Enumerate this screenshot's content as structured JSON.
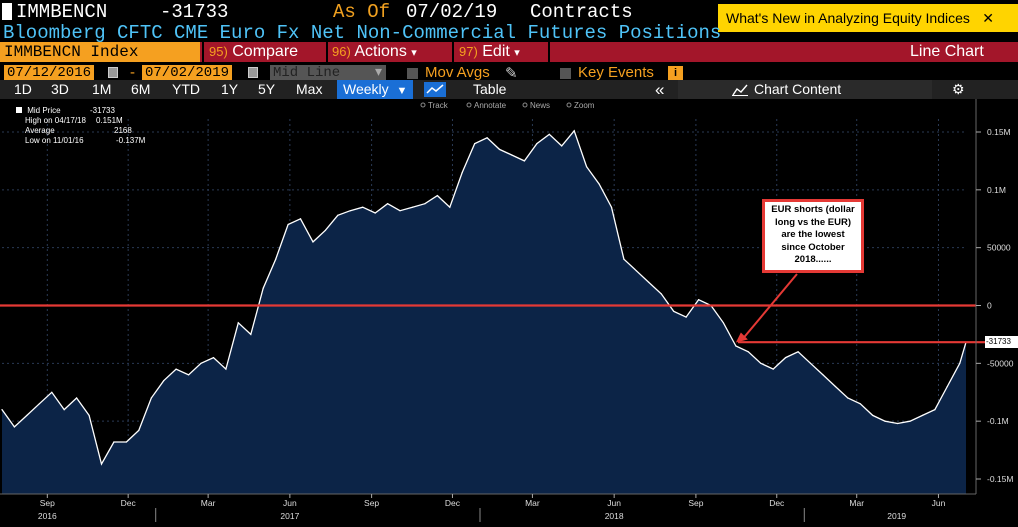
{
  "header": {
    "ticker": "IMMBENCN",
    "last_value": "-31733",
    "as_of_label": "As Of",
    "as_of_date": "07/02/19",
    "unit": "Contracts",
    "subtitle": "Bloomberg CFTC CME Euro Fx Net Non-Commercial Futures Positions",
    "whats_new": "What's New in Analyzing Equity Indices",
    "close_glyph": "✕"
  },
  "menubar": {
    "security": "IMMBENCN Index",
    "compare_num": "95)",
    "compare": "Compare",
    "actions_num": "96)",
    "actions": "Actions",
    "edit_num": "97)",
    "edit": "Edit",
    "dropdown_glyph": "▾",
    "view": "Line Chart"
  },
  "daterow": {
    "start": "07/12/2016",
    "dash": "-",
    "end": "07/02/2019",
    "mode": "Mid Line",
    "mode_arrow": "▾",
    "mov_avgs": "Mov Avgs",
    "key_events": "Key Events",
    "info": "i",
    "pencil": "✎"
  },
  "toolbar": {
    "periods": [
      "1D",
      "3D",
      "1M",
      "6M",
      "YTD",
      "1Y",
      "5Y",
      "Max"
    ],
    "frequency": "Weekly",
    "freq_arrow": "▼",
    "table": "Table",
    "collapse": "«",
    "chart_content": "Chart Content",
    "gear": "⚙"
  },
  "plot_tools": [
    "Track",
    "Annotate",
    "News",
    "Zoom"
  ],
  "legend": {
    "mid_price_label": "Mid Price",
    "mid_price": "-31733",
    "high_label": "High on 04/17/18",
    "high": "0.151M",
    "avg_label": "Average",
    "avg": "2168",
    "low_label": "Low on 11/01/16",
    "low": "-0.137M"
  },
  "annotation": {
    "lines": [
      "EUR shorts (dollar",
      "long vs the EUR)",
      "are the lowest",
      "since October",
      "2018......"
    ]
  },
  "colors": {
    "fill": "#0c2447",
    "line": "#ffffff",
    "hline": "#e53935",
    "accent": "#f5a020",
    "menubar": "#a3162a"
  },
  "chart_data": {
    "type": "area",
    "title": "Bloomberg CFTC CME Euro Fx Net Non-Commercial Futures Positions",
    "frequency": "weekly",
    "ylim": [
      -160000,
      165000
    ],
    "y_ticks": [
      150000,
      100000,
      50000,
      0,
      -50000,
      -100000,
      -150000
    ],
    "y_tick_labels": [
      "0.15M",
      "0.1M",
      "50000",
      "0",
      "-50000",
      "-0.1M",
      "-0.15M"
    ],
    "x_tick_labels": [
      "Sep",
      "Dec",
      "Mar",
      "Jun",
      "Sep",
      "Dec",
      "Mar",
      "Jun",
      "Sep",
      "Dec",
      "Mar",
      "Jun"
    ],
    "x_tick_dates": [
      "2016-09-01",
      "2016-12-01",
      "2017-03-01",
      "2017-06-01",
      "2017-09-01",
      "2017-12-01",
      "2018-03-01",
      "2018-06-01",
      "2018-09-01",
      "2018-12-01",
      "2019-03-01",
      "2019-06-01"
    ],
    "year_labels": [
      "2016",
      "2017",
      "2018",
      "2019"
    ],
    "year_label_dates": [
      "2016-09-01",
      "2017-06-01",
      "2018-06-01",
      "2019-04-15"
    ],
    "horizontal_lines": [
      0,
      -31733
    ],
    "last_value_label": "-31733",
    "series": [
      {
        "dates": [
          "2016-07-12",
          "2016-07-26",
          "2016-08-09",
          "2016-08-23",
          "2016-09-06",
          "2016-09-20",
          "2016-10-04",
          "2016-10-18",
          "2016-11-01",
          "2016-11-15",
          "2016-11-29",
          "2016-12-13",
          "2016-12-27",
          "2017-01-10",
          "2017-01-24",
          "2017-02-07",
          "2017-02-21",
          "2017-03-07",
          "2017-03-21",
          "2017-04-04",
          "2017-04-18",
          "2017-05-02",
          "2017-05-16",
          "2017-05-30",
          "2017-06-13",
          "2017-06-27",
          "2017-07-11",
          "2017-07-25",
          "2017-08-08",
          "2017-08-22",
          "2017-09-05",
          "2017-09-19",
          "2017-10-03",
          "2017-10-17",
          "2017-10-31",
          "2017-11-14",
          "2017-11-28",
          "2017-12-12",
          "2017-12-26",
          "2018-01-09",
          "2018-01-23",
          "2018-02-06",
          "2018-02-20",
          "2018-03-06",
          "2018-03-20",
          "2018-04-03",
          "2018-04-17",
          "2018-05-01",
          "2018-05-15",
          "2018-05-29",
          "2018-06-12",
          "2018-06-26",
          "2018-07-10",
          "2018-07-24",
          "2018-08-07",
          "2018-08-21",
          "2018-09-04",
          "2018-09-18",
          "2018-10-02",
          "2018-10-16",
          "2018-10-30",
          "2018-11-13",
          "2018-11-27",
          "2018-12-11",
          "2018-12-25",
          "2019-01-08",
          "2019-01-22",
          "2019-02-05",
          "2019-02-19",
          "2019-03-05",
          "2019-03-19",
          "2019-04-02",
          "2019-04-16",
          "2019-04-30",
          "2019-05-14",
          "2019-05-28",
          "2019-06-11",
          "2019-06-25",
          "2019-07-02"
        ],
        "values": [
          -90000,
          -105000,
          -95000,
          -85000,
          -75000,
          -90000,
          -80000,
          -95000,
          -137000,
          -118000,
          -118000,
          -108000,
          -80000,
          -65000,
          -55000,
          -60000,
          -50000,
          -45000,
          -55000,
          -15000,
          -25000,
          15000,
          40000,
          70000,
          75000,
          55000,
          65000,
          78000,
          82000,
          85000,
          80000,
          88000,
          82000,
          85000,
          88000,
          95000,
          85000,
          115000,
          140000,
          145000,
          135000,
          130000,
          125000,
          140000,
          148000,
          138000,
          151000,
          120000,
          105000,
          85000,
          40000,
          30000,
          20000,
          10000,
          -5000,
          -10000,
          5000,
          0,
          -15000,
          -35000,
          -40000,
          -50000,
          -55000,
          -45000,
          -40000,
          -50000,
          -60000,
          -70000,
          -80000,
          -85000,
          -95000,
          -100000,
          -102000,
          -100000,
          -95000,
          -90000,
          -70000,
          -50000,
          -31733
        ]
      }
    ]
  }
}
